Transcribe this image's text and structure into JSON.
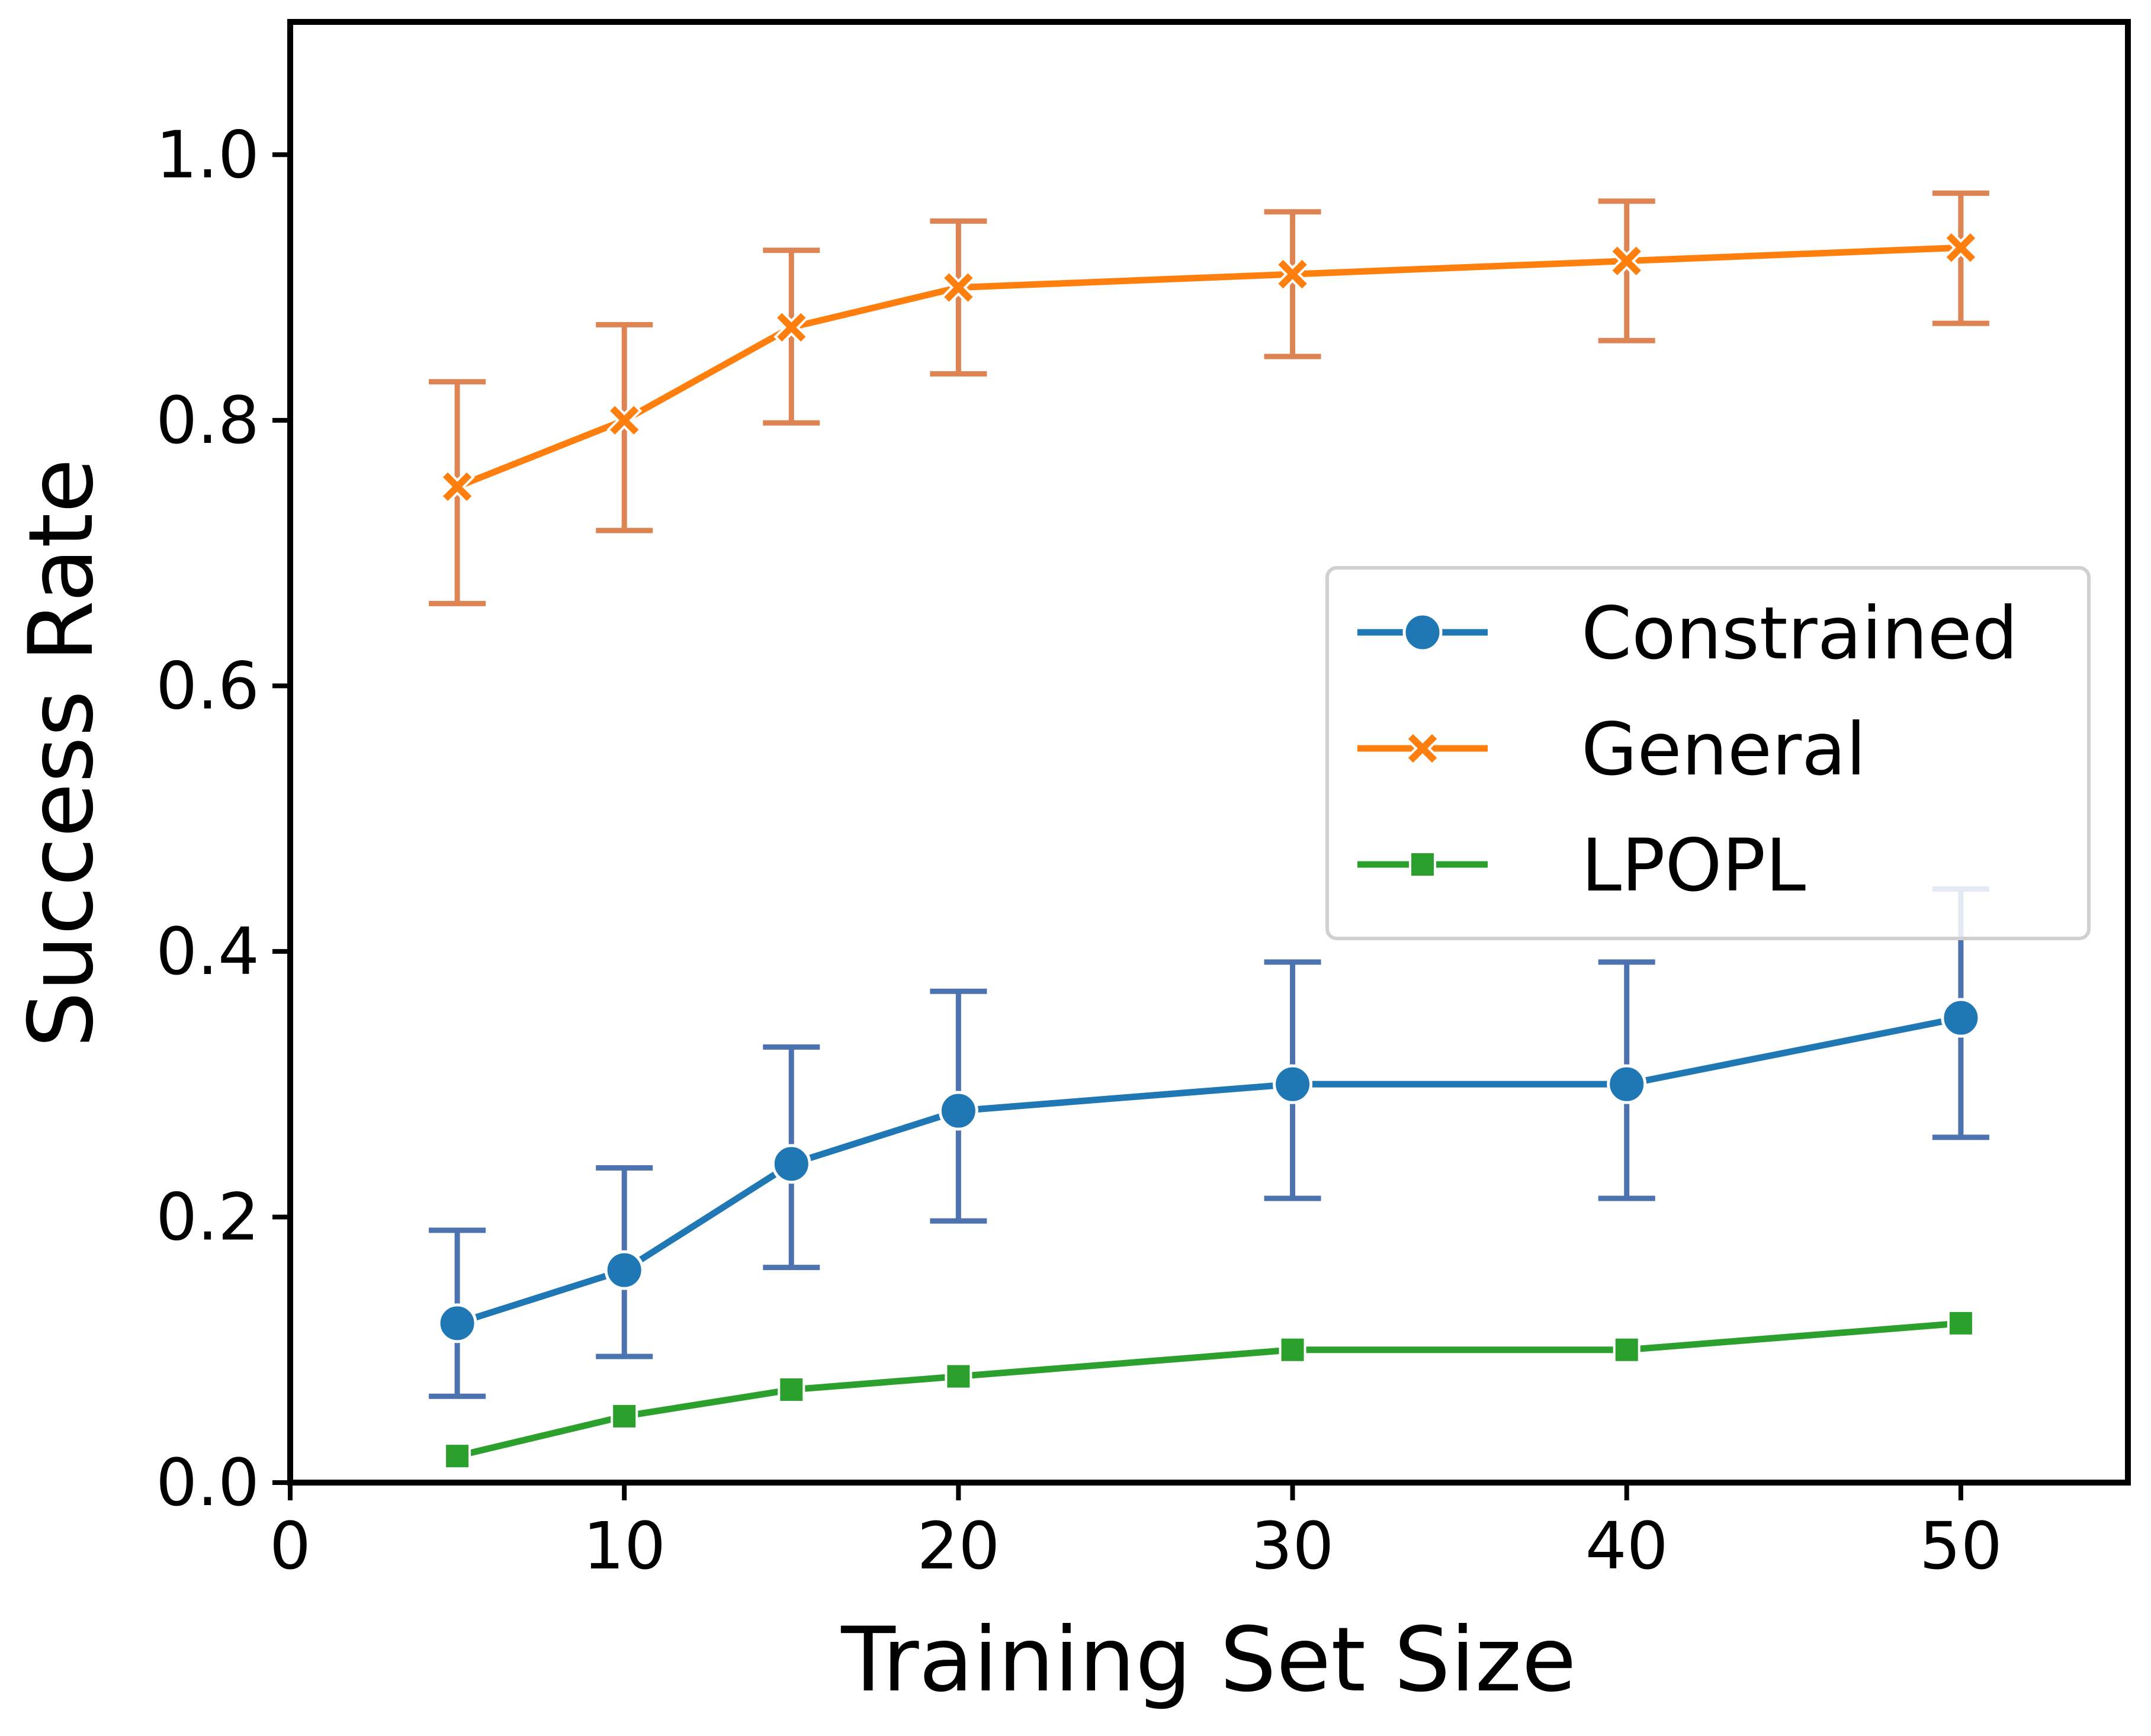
{
  "chart_data": {
    "type": "line",
    "title": "",
    "xlabel": "Training Set Size",
    "ylabel": "Success Rate",
    "xlim": [
      0,
      55
    ],
    "ylim": [
      0,
      1.1
    ],
    "xticks": [
      0,
      10,
      20,
      30,
      40,
      50
    ],
    "yticks": [
      0.0,
      0.2,
      0.4,
      0.6,
      0.8,
      1.0
    ],
    "xtick_labels": [
      "0",
      "10",
      "20",
      "30",
      "40",
      "50"
    ],
    "ytick_labels": [
      "0.0",
      "0.2",
      "0.4",
      "0.6",
      "0.8",
      "1.0"
    ],
    "x": [
      5,
      10,
      15,
      20,
      30,
      40,
      50
    ],
    "grid": false,
    "legend_position": "center-right",
    "series": [
      {
        "name": "Constrained",
        "marker": "circle",
        "color": "#1f77b4",
        "errorbar_color": "#4c72b0",
        "values": [
          0.12,
          0.16,
          0.24,
          0.28,
          0.3,
          0.3,
          0.35
        ],
        "error_low": [
          0.065,
          0.095,
          0.162,
          0.197,
          0.214,
          0.214,
          0.26
        ],
        "error_high": [
          0.19,
          0.237,
          0.328,
          0.37,
          0.392,
          0.392,
          0.447
        ]
      },
      {
        "name": "General",
        "marker": "x",
        "color": "#ff7f0e",
        "errorbar_color": "#dd8452",
        "values": [
          0.75,
          0.8,
          0.87,
          0.9,
          0.91,
          0.92,
          0.93
        ],
        "error_low": [
          0.662,
          0.717,
          0.798,
          0.835,
          0.848,
          0.86,
          0.873
        ],
        "error_high": [
          0.829,
          0.872,
          0.928,
          0.95,
          0.957,
          0.965,
          0.971
        ]
      },
      {
        "name": "LPOPL",
        "marker": "square",
        "color": "#2ca02c",
        "values": [
          0.02,
          0.05,
          0.07,
          0.08,
          0.1,
          0.1,
          0.12
        ]
      }
    ]
  }
}
